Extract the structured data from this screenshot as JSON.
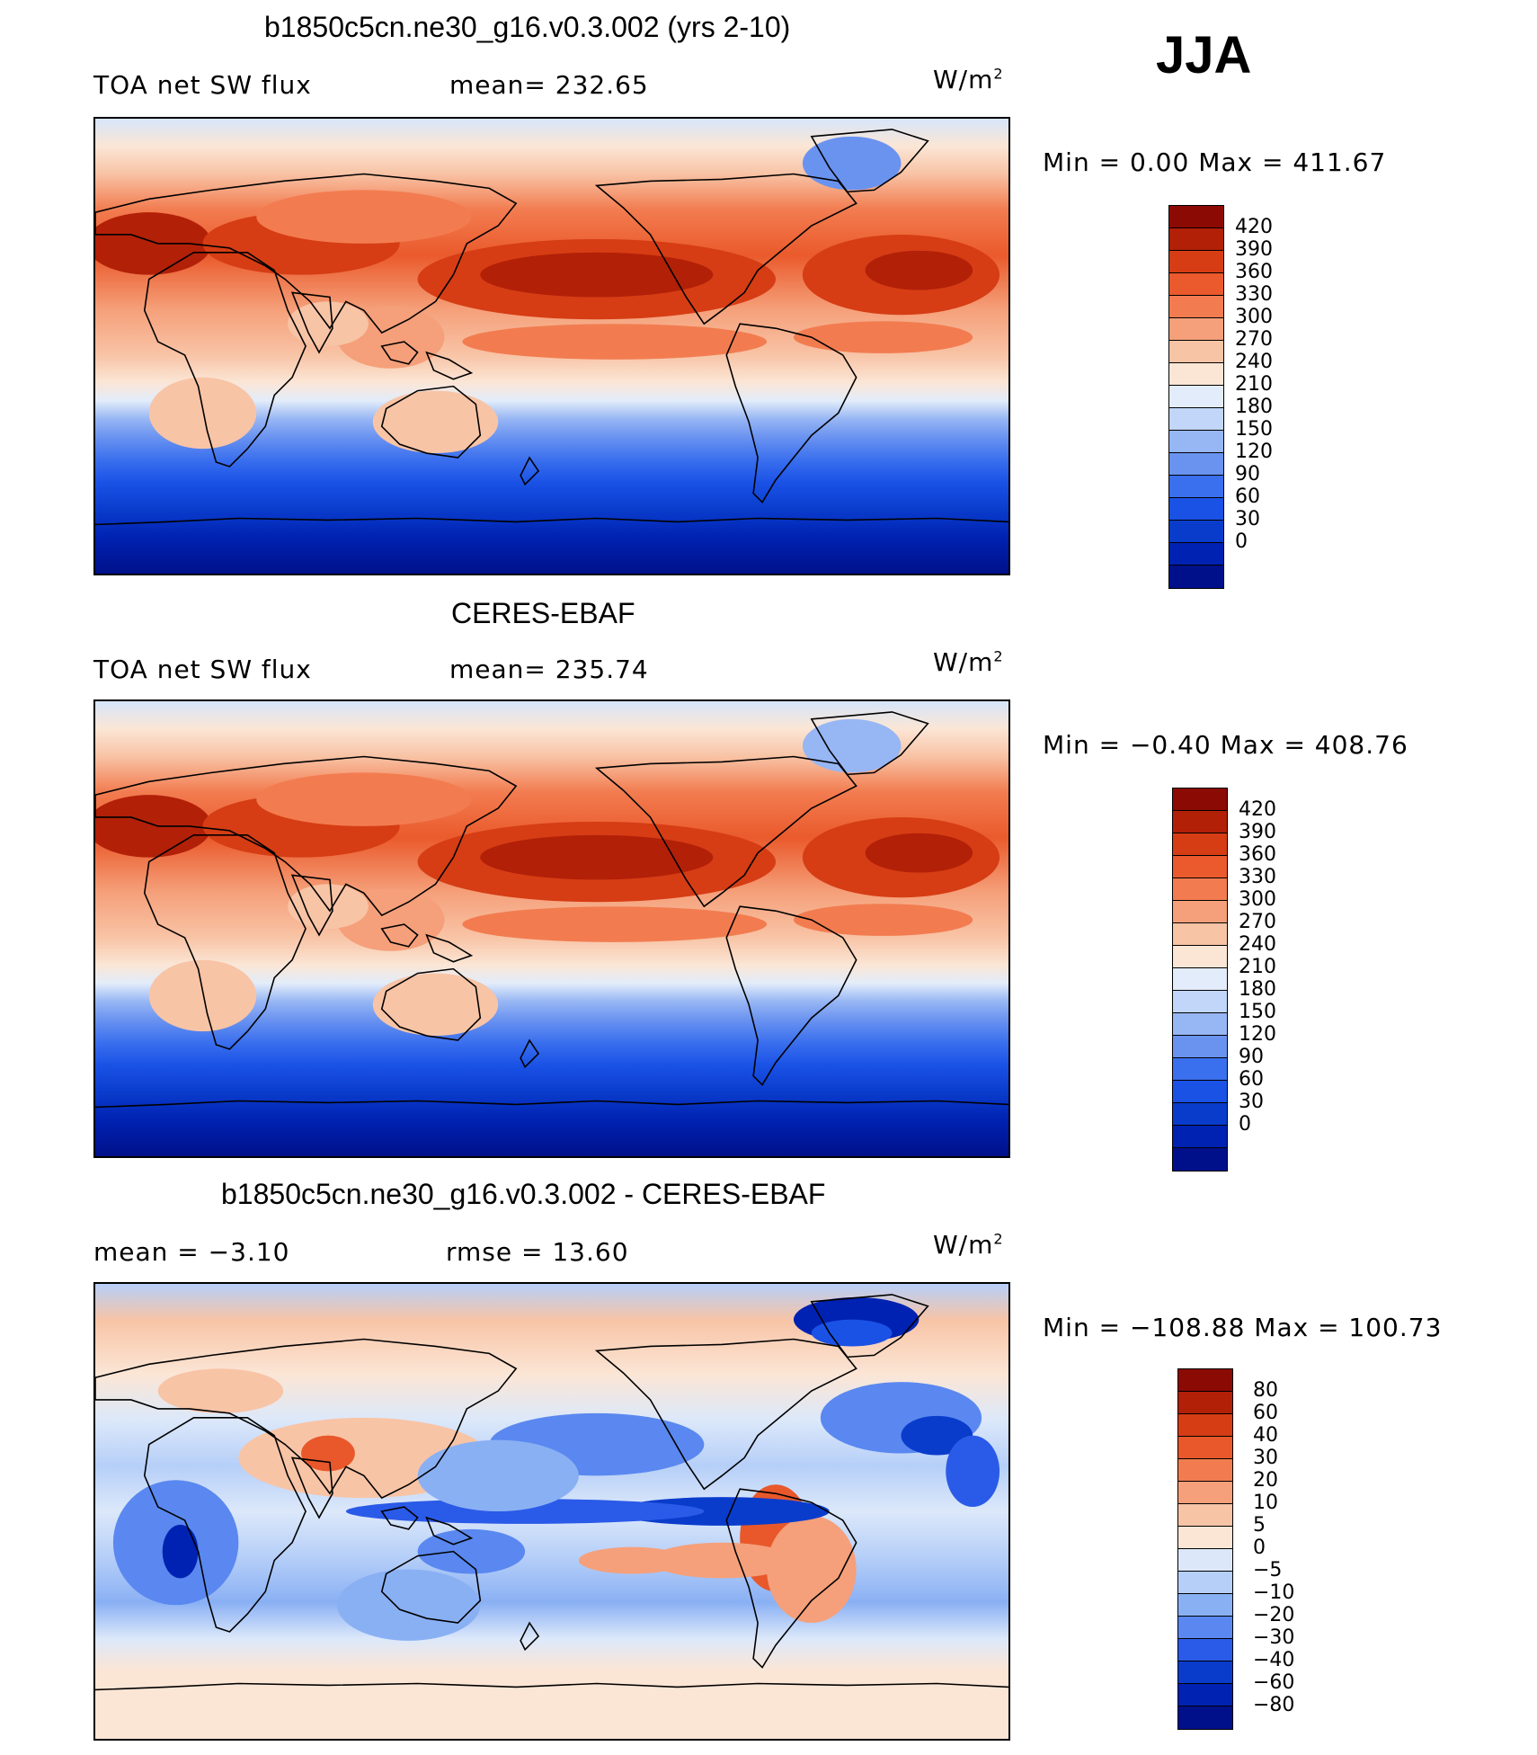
{
  "season": "JJA",
  "colors": {
    "abs_scale": [
      "#00108a",
      "#0022b2",
      "#0a3ccc",
      "#1a52e6",
      "#3a6fee",
      "#6a93f0",
      "#97b6f4",
      "#c1d6f8",
      "#e2ecfa",
      "#fbe6d6",
      "#f8c4a6",
      "#f5a07a",
      "#f27c50",
      "#ea5a2c",
      "#d63d14",
      "#b22008",
      "#8c0a04"
    ],
    "diff_scale": [
      "#00108a",
      "#0022b2",
      "#0a3ccc",
      "#2a5ae8",
      "#5a88f0",
      "#8ab0f4",
      "#b6cff8",
      "#dce8fa",
      "#fbe6d6",
      "#f8c4a6",
      "#f5a07a",
      "#f27c50",
      "#e8582a",
      "#d63d14",
      "#b22008",
      "#8c0a04"
    ]
  },
  "chart_data": [
    {
      "type": "heatmap",
      "title": "b1850c5cn.ne30_g16.v0.3.002 (yrs 2-10)",
      "left_label": "TOA net SW flux",
      "stat_label": "mean= 232.65",
      "units_label": "W/m",
      "units_exp": "2",
      "mean": 232.65,
      "min": 0.0,
      "max": 411.67,
      "minmax_text": "Min =    0.00  Max  =  411.67",
      "levels": [
        "420",
        "390",
        "360",
        "330",
        "300",
        "270",
        "240",
        "210",
        "180",
        "150",
        "120",
        "90",
        "60",
        "30",
        "0"
      ]
    },
    {
      "type": "heatmap",
      "title": "CERES-EBAF",
      "left_label": "TOA net SW flux",
      "stat_label": "mean= 235.74",
      "units_label": "W/m",
      "units_exp": "2",
      "mean": 235.74,
      "min": -0.4,
      "max": 408.76,
      "minmax_text": "Min =   −0.40  Max  =  408.76",
      "levels": [
        "420",
        "390",
        "360",
        "330",
        "300",
        "270",
        "240",
        "210",
        "180",
        "150",
        "120",
        "90",
        "60",
        "30",
        "0"
      ]
    },
    {
      "type": "heatmap",
      "title": "b1850c5cn.ne30_g16.v0.3.002 - CERES-EBAF",
      "left_label": "mean  =    −3.10",
      "stat_label": "rmse  =    13.60",
      "units_label": "W/m",
      "units_exp": "2",
      "mean": -3.1,
      "rmse": 13.6,
      "min": -108.88,
      "max": 100.73,
      "minmax_text": "Min  = −108.88  Max  =  100.73",
      "levels": [
        "80",
        "60",
        "40",
        "30",
        "20",
        "10",
        "5",
        "0",
        "−5",
        "−10",
        "−20",
        "−30",
        "−40",
        "−60",
        "−80"
      ]
    }
  ]
}
